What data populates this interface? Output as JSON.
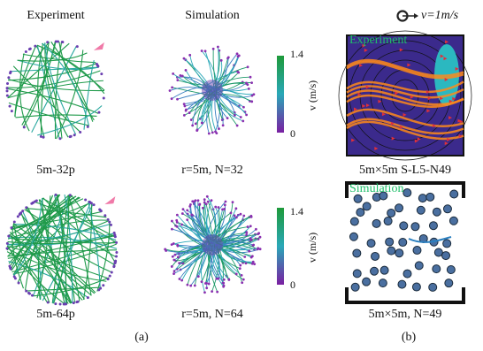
{
  "headers": {
    "left": "Experiment",
    "middle": "Simulation",
    "scale": "v=1m/s"
  },
  "rows": [
    {
      "experiment_label": "5m-32p",
      "simulation_label": "r=5m, N=32",
      "colorbar": {
        "max": "1.4",
        "min": "0",
        "label": "v (m/s)"
      },
      "square_overlay": "Experiment",
      "square_label": "5m×5m S-L5-N49"
    },
    {
      "experiment_label": "5m-64p",
      "simulation_label": "r=5m, N=64",
      "colorbar": {
        "max": "1.4",
        "min": "0",
        "label": "v (m/s)"
      },
      "square_overlay": "Simulation",
      "square_label": "5m×5m, N=49"
    }
  ],
  "panel_labels": [
    "(a)",
    "(b)"
  ]
}
